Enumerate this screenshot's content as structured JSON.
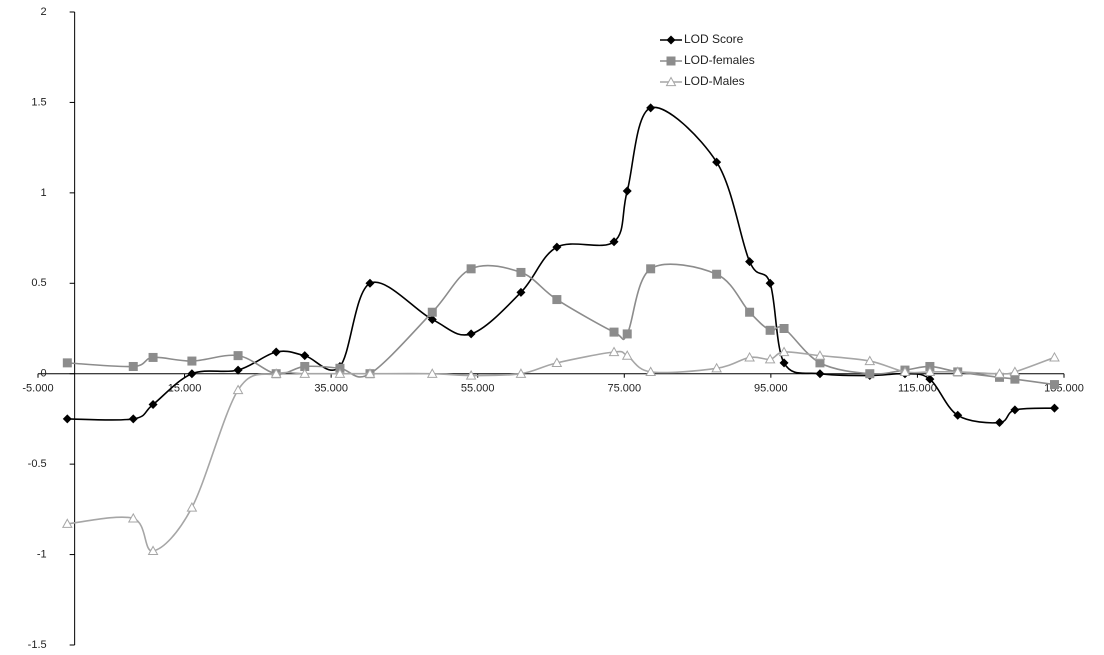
{
  "chart_data": {
    "type": "line",
    "x": [
      -1.0,
      8.0,
      10.7,
      16.0,
      22.3,
      27.5,
      31.4,
      36.2,
      40.3,
      48.8,
      54.1,
      60.9,
      65.8,
      73.6,
      75.4,
      78.6,
      87.6,
      92.1,
      94.9,
      96.8,
      101.7,
      108.5,
      113.3,
      116.7,
      120.5,
      126.2,
      128.3,
      133.7
    ],
    "series": [
      {
        "name": "LOD Score",
        "color": "#000000",
        "marker": "diamond",
        "values": [
          -0.25,
          -0.25,
          -0.17,
          0,
          0.02,
          0.12,
          0.1,
          0.04,
          0.5,
          0.3,
          0.22,
          0.45,
          0.7,
          0.73,
          1.01,
          1.47,
          1.17,
          0.62,
          0.5,
          0.06,
          0,
          -0.01,
          0,
          -0.03,
          -0.23,
          -0.27,
          -0.2,
          -0.19
        ]
      },
      {
        "name": "LOD-females",
        "color": "#8c8c8c",
        "marker": "square",
        "values": [
          0.06,
          0.04,
          0.09,
          0.07,
          0.1,
          0,
          0.04,
          0.03,
          0,
          0.34,
          0.58,
          0.56,
          0.41,
          0.23,
          0.22,
          0.58,
          0.55,
          0.34,
          0.24,
          0.25,
          0.06,
          0,
          0.02,
          0.04,
          0.01,
          -0.02,
          -0.03,
          -0.06
        ]
      },
      {
        "name": "LOD-Males",
        "color": "#a6a6a6",
        "marker": "triangle",
        "values": [
          -0.83,
          -0.8,
          -0.98,
          -0.74,
          -0.09,
          0,
          0,
          0,
          0,
          0,
          -0.01,
          0,
          0.06,
          0.12,
          0.1,
          0.01,
          0.03,
          0.09,
          0.08,
          0.12,
          0.1,
          0.07,
          0.01,
          0.01,
          0.01,
          0,
          0.01,
          0.09
        ]
      }
    ],
    "xlim": [
      -5,
      135
    ],
    "xticks": [
      {
        "value": -5,
        "label": "-5.000"
      },
      {
        "value": 15,
        "label": "15.000"
      },
      {
        "value": 35,
        "label": "35.000"
      },
      {
        "value": 55,
        "label": "55.000"
      },
      {
        "value": 75,
        "label": "75.000"
      },
      {
        "value": 95,
        "label": "95.000"
      },
      {
        "value": 115,
        "label": "115.000"
      },
      {
        "value": 135,
        "label": "135.000"
      }
    ],
    "ylim": [
      -1.5,
      2
    ],
    "yticks": [
      -1.5,
      -1,
      -0.5,
      0,
      0.5,
      1,
      1.5,
      2
    ],
    "smooth": true,
    "legend": "top-right"
  }
}
